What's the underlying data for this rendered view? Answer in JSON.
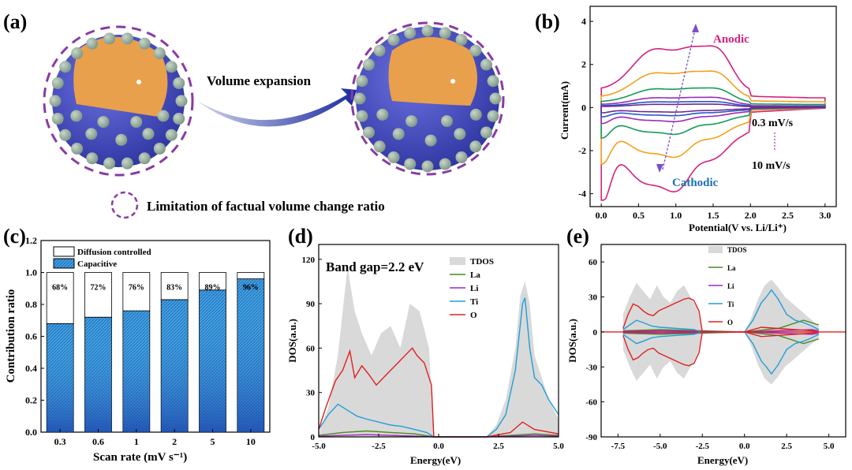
{
  "panels": {
    "a": {
      "label": "(a)",
      "arrow_text": "Volume expansion",
      "legend_text": "Limitation of factual volume change ratio",
      "colors": {
        "shell": "#4a4fc0",
        "core": "#e8a24e",
        "dots": "#9fb3a3",
        "dash": "#8a3aa2",
        "arrow": "#1a2aa0"
      }
    },
    "b": {
      "label": "(b)",
      "xlabel": "Potential(V vs. Li/Li⁺)",
      "ylabel": "Current(mA)",
      "xticks": [
        "0.0",
        "0.5",
        "1.0",
        "1.5",
        "2.0",
        "2.5",
        "3.0"
      ],
      "yticks": [
        "-4",
        "-2",
        "0",
        "2",
        "4"
      ],
      "xlim": [
        -0.15,
        3.15
      ],
      "ylim": [
        -4.6,
        4.7
      ],
      "anodic": "Anodic",
      "cathodic": "Cathodic",
      "rate_low": "0.3 mV/s",
      "rate_high": "10 mV/s",
      "series_colors": [
        "#d6217c",
        "#f2a11d",
        "#139c5a",
        "#9b2ab8",
        "#2457c9",
        "#6f2a8e"
      ],
      "series_scale": [
        3.3,
        1.95,
        1.05,
        0.55,
        0.32,
        0.18
      ]
    },
    "c": {
      "label": "(c)",
      "xlabel": "Scan rate (mV s⁻¹)",
      "ylabel": "Contribution ratio",
      "legend": [
        "Diffusion controlled",
        "Capacitive"
      ],
      "yticks": [
        "0.0",
        "0.2",
        "0.4",
        "0.6",
        "0.8",
        "1.0",
        "1.2"
      ],
      "ylim": [
        0,
        1.2
      ]
    },
    "d": {
      "label": "(d)",
      "title": "Band gap=2.2 eV",
      "xlabel": "Energy(eV)",
      "ylabel": "DOS(a.u.)",
      "xticks": [
        "-5.0",
        "-2.5",
        "0.0",
        "2.5",
        "5.0"
      ],
      "yticks": [
        "0",
        "30",
        "60",
        "90",
        "120"
      ],
      "xlim": [
        -5.0,
        5.0
      ],
      "ylim": [
        0,
        130
      ],
      "legend": [
        "TDOS",
        "La",
        "Li",
        "Ti",
        "O"
      ]
    },
    "e": {
      "label": "(e)",
      "xlabel": "Energy(eV)",
      "ylabel": "DOS(a.u.)",
      "xticks": [
        "-7.5",
        "-5.0",
        "-2.5",
        "0.0",
        "2.5",
        "5.0"
      ],
      "yticks": [
        "-90",
        "-60",
        "-30",
        "0",
        "30",
        "60"
      ],
      "xlim": [
        -8.5,
        6.0
      ],
      "ylim": [
        -90,
        75
      ],
      "legend": [
        "TDOS",
        "La",
        "Li",
        "Ti",
        "O"
      ]
    }
  },
  "chart_data": [
    {
      "type": "bar",
      "title": "",
      "categories": [
        "0.3",
        "0.6",
        "1",
        "2",
        "5",
        "10"
      ],
      "series": [
        {
          "name": "Capacitive",
          "values": [
            0.68,
            0.72,
            0.76,
            0.83,
            0.89,
            0.96
          ]
        },
        {
          "name": "Diffusion controlled",
          "values": [
            0.32,
            0.28,
            0.24,
            0.17,
            0.11,
            0.04
          ]
        }
      ],
      "labels": [
        "68%",
        "72%",
        "76%",
        "83%",
        "89%",
        "96%"
      ],
      "xlabel": "Scan rate (mV s⁻¹)",
      "ylabel": "Contribution ratio",
      "ylim": [
        0,
        1.2
      ]
    },
    {
      "type": "line",
      "title": "Band gap=2.2 eV",
      "xlabel": "Energy(eV)",
      "ylabel": "DOS(a.u.)",
      "xlim": [
        -5.0,
        5.0
      ],
      "ylim": [
        0,
        130
      ],
      "series": [
        {
          "name": "TDOS",
          "color": "#d9d9d9",
          "x": [
            -5.0,
            -4.6,
            -4.2,
            -3.8,
            -3.5,
            -3.2,
            -2.8,
            -2.4,
            -2.0,
            -1.6,
            -1.2,
            -0.8,
            -0.4,
            -0.2,
            2.0,
            2.4,
            2.8,
            3.2,
            3.4,
            3.6,
            3.8,
            4.0,
            4.3,
            4.6,
            5.0
          ],
          "y": [
            2,
            20,
            55,
            115,
            85,
            70,
            55,
            70,
            75,
            60,
            90,
            85,
            60,
            0,
            0,
            8,
            25,
            60,
            95,
            105,
            90,
            55,
            40,
            25,
            12
          ]
        },
        {
          "name": "La",
          "color": "#4a8a22",
          "x": [
            -5.0,
            -4.0,
            -3.0,
            -2.0,
            -1.0,
            -0.2,
            2.0,
            3.0,
            4.0,
            5.0
          ],
          "y": [
            1,
            3,
            4,
            3,
            2,
            0,
            0,
            1,
            2,
            1
          ]
        },
        {
          "name": "Li",
          "color": "#9b2ab8",
          "x": [
            -5.0,
            -4.0,
            -3.0,
            -2.0,
            -1.0,
            -0.2,
            2.0,
            3.0,
            4.0,
            5.0
          ],
          "y": [
            0.5,
            1,
            1.5,
            1,
            0.5,
            0,
            0,
            0.5,
            1,
            0.5
          ]
        },
        {
          "name": "Ti",
          "color": "#1f9fd8",
          "x": [
            -5.0,
            -4.6,
            -4.2,
            -3.8,
            -3.4,
            -3.0,
            -2.5,
            -2.0,
            -1.5,
            -1.0,
            -0.5,
            -0.2,
            2.0,
            2.4,
            2.8,
            3.2,
            3.5,
            3.6,
            3.8,
            4.0,
            4.3,
            4.6,
            5.0
          ],
          "y": [
            5,
            15,
            22,
            18,
            14,
            12,
            10,
            8,
            7,
            5,
            3,
            0,
            0,
            5,
            15,
            45,
            90,
            94,
            60,
            40,
            35,
            25,
            15
          ]
        },
        {
          "name": "O",
          "color": "#e02020",
          "x": [
            -5.0,
            -4.7,
            -4.3,
            -4.0,
            -3.7,
            -3.5,
            -3.2,
            -2.9,
            -2.6,
            -2.3,
            -2.0,
            -1.7,
            -1.4,
            -1.1,
            -0.9,
            -0.6,
            -0.3,
            -0.2,
            2.0,
            3.0,
            3.5,
            4.0,
            5.0
          ],
          "y": [
            5,
            20,
            38,
            45,
            58,
            40,
            48,
            42,
            35,
            40,
            45,
            50,
            55,
            60,
            55,
            50,
            35,
            0,
            0,
            3,
            10,
            5,
            2
          ]
        }
      ]
    },
    {
      "type": "line",
      "title": "",
      "xlabel": "Energy(eV)",
      "ylabel": "DOS(a.u.)",
      "xlim": [
        -8.5,
        6.0
      ],
      "ylim": [
        -90,
        75
      ],
      "series": [
        {
          "name": "TDOS",
          "color": "#d9d9d9",
          "x": [
            -7.2,
            -6.8,
            -6.4,
            -6.0,
            -5.6,
            -5.2,
            -4.8,
            -4.4,
            -4.0,
            -3.6,
            -3.2,
            -2.8,
            -2.5,
            0.0,
            0.4,
            0.8,
            1.2,
            1.6,
            2.0,
            2.4,
            2.8,
            3.2,
            3.6,
            4.0,
            4.4
          ],
          "y": [
            15,
            30,
            42,
            35,
            28,
            40,
            30,
            25,
            35,
            40,
            30,
            20,
            0,
            0,
            12,
            28,
            40,
            45,
            38,
            30,
            25,
            20,
            15,
            10,
            5
          ]
        },
        {
          "name": "La",
          "color": "#4a8a22",
          "x": [
            -7.2,
            -5.0,
            -2.5,
            0.0,
            2.0,
            3.5,
            4.4
          ],
          "y": [
            1,
            2,
            1,
            0,
            3,
            10,
            6
          ]
        },
        {
          "name": "Li",
          "color": "#9b2ab8",
          "x": [
            -7.2,
            -5.0,
            -2.5,
            0.0,
            2.0,
            4.0,
            4.4
          ],
          "y": [
            0.5,
            1,
            0.5,
            0,
            1,
            2,
            1
          ]
        },
        {
          "name": "Ti",
          "color": "#1f9fd8",
          "x": [
            -7.2,
            -6.8,
            -6.4,
            -6.0,
            -5.5,
            -5.0,
            -4.0,
            -3.0,
            -2.5,
            0.0,
            0.5,
            1.0,
            1.3,
            1.6,
            2.0,
            2.5,
            3.0,
            3.5,
            4.0,
            4.4
          ],
          "y": [
            2,
            6,
            10,
            8,
            5,
            4,
            3,
            2,
            0,
            0,
            10,
            25,
            30,
            36,
            28,
            15,
            10,
            8,
            5,
            2
          ]
        },
        {
          "name": "O",
          "color": "#e02020",
          "x": [
            -7.2,
            -6.9,
            -6.6,
            -6.3,
            -6.0,
            -5.7,
            -5.4,
            -5.1,
            -4.8,
            -4.5,
            -4.2,
            -3.9,
            -3.6,
            -3.3,
            -3.0,
            -2.7,
            -2.5,
            0.0,
            1.0,
            2.0,
            3.0,
            4.0,
            4.4
          ],
          "y": [
            3,
            15,
            24,
            22,
            18,
            15,
            14,
            18,
            20,
            22,
            24,
            26,
            28,
            29,
            27,
            18,
            0,
            0,
            4,
            3,
            2,
            1,
            0
          ]
        }
      ]
    }
  ]
}
